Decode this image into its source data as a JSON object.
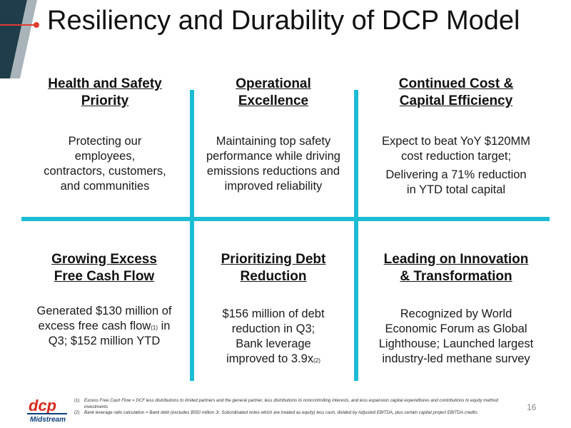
{
  "slide": {
    "title": "Resiliency and Durability of DCP Model",
    "page_number": "16"
  },
  "cells": [
    {
      "heading": [
        "Health and Safety",
        "Priority"
      ],
      "body": [
        "Protecting our",
        "employees,",
        "contractors, customers,",
        "and communities"
      ]
    },
    {
      "heading": [
        "Operational",
        "Excellence"
      ],
      "body": [
        "Maintaining top safety",
        "performance while driving",
        "emissions reductions and",
        "improved reliability"
      ]
    },
    {
      "heading": [
        "Continued Cost &",
        "Capital Efficiency"
      ],
      "body_p1": [
        "Expect to beat YoY $120MM",
        "cost reduction target;"
      ],
      "body_p2": [
        "Delivering a 71% reduction",
        "in YTD total capital"
      ]
    },
    {
      "heading": [
        "Growing Excess",
        "Free Cash Flow"
      ],
      "body": [
        "Generated $130 million of",
        "excess free cash flow",
        "(1)",
        " in",
        "Q3; $152 million YTD"
      ]
    },
    {
      "heading": [
        "Prioritizing Debt",
        "Reduction"
      ],
      "body": [
        "$156 million of debt",
        "reduction in Q3;",
        "Bank leverage",
        "improved to 3.9x",
        "(2)"
      ]
    },
    {
      "heading": [
        "Leading on Innovation",
        "& Transformation"
      ],
      "body": [
        "Recognized by World",
        "Economic Forum as Global",
        "Lighthouse; Launched largest",
        "industry-led methane survey"
      ]
    }
  ],
  "footnotes": [
    {
      "num": "(1)",
      "text": "Excess Free Cash Flow = DCF less distributions to limited partners and the general partner, less distributions to noncontrolling interests, and less expansion capital expenditures and contributions to equity method investments"
    },
    {
      "num": "(2)",
      "text": "Bank leverage ratio calculation = Bank debt (excludes $550 million Jr. Subordinated notes which are treated as equity) less cash, divided by Adjusted EBITDA, plus certain capital project EBITDA credits"
    }
  ],
  "logo": {
    "wordmark": "dcp",
    "subtext": "Midstream"
  },
  "colors": {
    "accent_line": "#1bbcd4",
    "dark_band": "#1f3d4a",
    "title_dot": "#e03c31",
    "logo_red": "#d52b1e",
    "logo_blue": "#0a3d7a"
  }
}
